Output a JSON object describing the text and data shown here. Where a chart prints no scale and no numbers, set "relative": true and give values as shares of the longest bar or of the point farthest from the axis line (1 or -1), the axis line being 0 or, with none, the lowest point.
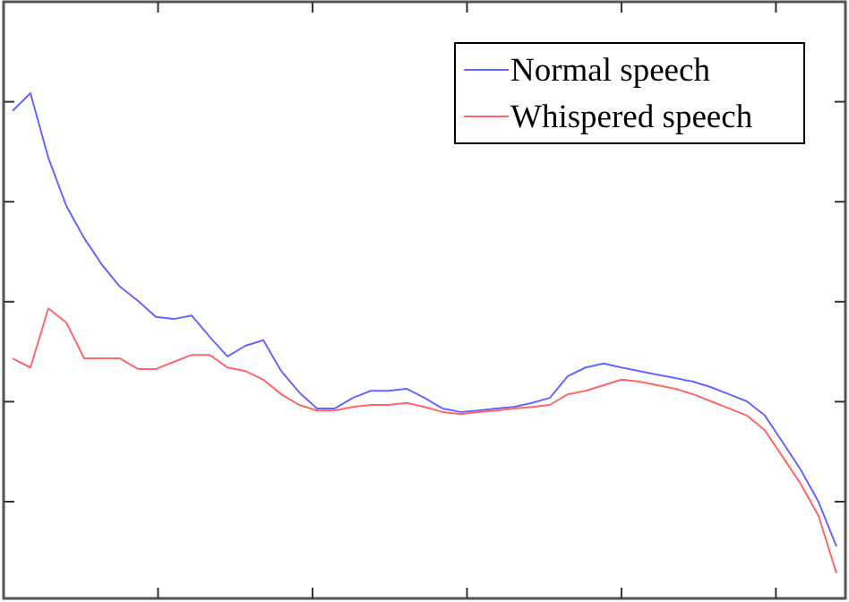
{
  "chart_data": {
    "type": "line",
    "relative": true,
    "categories": [
      null,
      null,
      null,
      null,
      null,
      null,
      null,
      null,
      null,
      null,
      null,
      null,
      null,
      null,
      null,
      null,
      null,
      null,
      null,
      null,
      null,
      null,
      null,
      null,
      null,
      null,
      null,
      null,
      null,
      null,
      null,
      null,
      null,
      null,
      null,
      null,
      null,
      null,
      null,
      null,
      null,
      null,
      null,
      null,
      null,
      null,
      null
    ],
    "legend": "top right",
    "grid": false,
    "marker": "none",
    "line_style": "solid",
    "series": [
      {
        "name": "Normal speech",
        "color": "#6666ff",
        "values": [
          0.965,
          1,
          0.872,
          0.777,
          0.713,
          0.66,
          0.617,
          0.589,
          0.557,
          0.553,
          0.56,
          0.518,
          0.479,
          0.5,
          0.511,
          0.45,
          0.408,
          0.376,
          0.376,
          0.397,
          0.411,
          0.411,
          0.415,
          0.397,
          0.376,
          0.369,
          0.372,
          0.376,
          0.379,
          0.387,
          0.397,
          0.44,
          0.457,
          0.465,
          0.457,
          0.45,
          0.443,
          0.436,
          0.429,
          0.418,
          0.404,
          0.39,
          0.362,
          0.309,
          0.255,
          0.191,
          0.103
        ]
      },
      {
        "name": "Whispered speech",
        "color": "#ff6666",
        "values": [
          0.475,
          0.457,
          0.574,
          0.546,
          0.475,
          0.475,
          0.475,
          0.454,
          0.454,
          0.468,
          0.482,
          0.482,
          0.457,
          0.45,
          0.433,
          0.404,
          0.383,
          0.372,
          0.372,
          0.379,
          0.383,
          0.383,
          0.387,
          0.379,
          0.369,
          0.365,
          0.369,
          0.372,
          0.376,
          0.379,
          0.383,
          0.404,
          0.411,
          0.422,
          0.433,
          0.429,
          0.422,
          0.415,
          0.404,
          0.39,
          0.376,
          0.362,
          0.333,
          0.28,
          0.227,
          0.163,
          0.05
        ]
      }
    ]
  }
}
